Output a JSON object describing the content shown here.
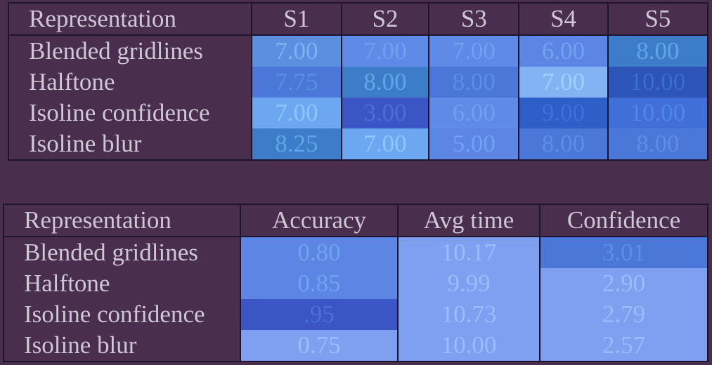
{
  "table1": {
    "headers": [
      "Representation",
      "S1",
      "S2",
      "S3",
      "S4",
      "S5"
    ],
    "rows": [
      {
        "label": "Blended gridlines",
        "values": [
          "7.00",
          "7.00",
          "7.00",
          "6.00",
          "8.00"
        ]
      },
      {
        "label": "Halftone",
        "values": [
          "7.75",
          "8.00",
          "8.00",
          "7.00",
          "10.00"
        ]
      },
      {
        "label": "Isoline confidence",
        "values": [
          "7.00",
          "3.00",
          "6.00",
          "9.00",
          "10.00"
        ]
      },
      {
        "label": "Isoline blur",
        "values": [
          "8.25",
          "7.00",
          "5.00",
          "8.00",
          "8.00"
        ]
      }
    ]
  },
  "table2": {
    "headers": [
      "Representation",
      "Accuracy",
      "Avg time",
      "Confidence"
    ],
    "rows": [
      {
        "label": "Blended gridlines",
        "values": [
          "0.80",
          "10.17",
          "3.01"
        ]
      },
      {
        "label": "Halftone",
        "values": [
          "0.85",
          "9.99",
          "2.90"
        ]
      },
      {
        "label": "Isoline confidence",
        "values": [
          ".95",
          "10.73",
          "2.79"
        ]
      },
      {
        "label": "Isoline blur",
        "values": [
          "0.75",
          "10.00",
          "2.57"
        ]
      }
    ]
  },
  "colors": {
    "background": "#4a2e4e",
    "text": "#cfc6d6",
    "border": "#1c1430",
    "highlight": "#5b8fe0"
  }
}
